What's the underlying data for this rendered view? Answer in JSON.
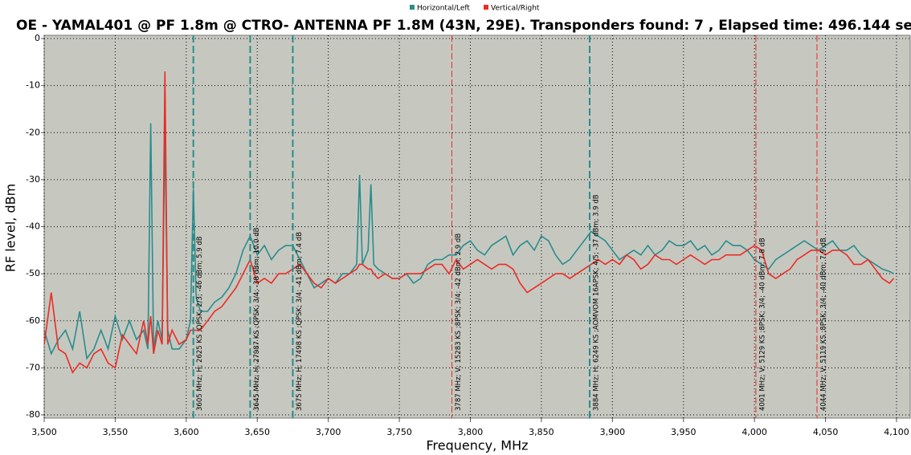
{
  "chart_data": {
    "type": "line",
    "title": "OE - YAMAL401 @ PF 1.8m @ CTRO- ANTENNA PF 1.8M (43N, 29E). Transponders found: 7 , Elapsed time: 496.144 se",
    "x_label": "Frequency, MHz",
    "y_label": "RF level, dBm",
    "xlim": [
      3500,
      4100
    ],
    "ylim": [
      -80,
      0
    ],
    "xticks": [
      {
        "value": 3500,
        "label": "3,500"
      },
      {
        "value": 3550,
        "label": "3,550"
      },
      {
        "value": 3600,
        "label": "3,600"
      },
      {
        "value": 3650,
        "label": "3,650"
      },
      {
        "value": 3700,
        "label": "3,700"
      },
      {
        "value": 3750,
        "label": "3,750"
      },
      {
        "value": 3800,
        "label": "3,800"
      },
      {
        "value": 3850,
        "label": "3,850"
      },
      {
        "value": 3900,
        "label": "3,900"
      },
      {
        "value": 3950,
        "label": "3,950"
      },
      {
        "value": 4000,
        "label": "4,000"
      },
      {
        "value": 4050,
        "label": "4,050"
      },
      {
        "value": 4100,
        "label": "4,100"
      }
    ],
    "yticks": [
      0,
      -10,
      -20,
      -30,
      -40,
      -50,
      -60,
      -70,
      -80
    ],
    "grid": true,
    "legend": "top",
    "x": [
      3500,
      3505,
      3510,
      3515,
      3520,
      3525,
      3530,
      3535,
      3540,
      3545,
      3550,
      3555,
      3560,
      3565,
      3570,
      3573,
      3575,
      3577,
      3580,
      3583,
      3585,
      3587,
      3590,
      3595,
      3600,
      3603,
      3605,
      3607,
      3610,
      3615,
      3620,
      3625,
      3630,
      3635,
      3640,
      3645,
      3650,
      3655,
      3660,
      3665,
      3670,
      3675,
      3680,
      3685,
      3690,
      3695,
      3700,
      3705,
      3710,
      3715,
      3720,
      3722,
      3724,
      3728,
      3730,
      3732,
      3735,
      3740,
      3745,
      3750,
      3755,
      3760,
      3765,
      3770,
      3775,
      3780,
      3785,
      3790,
      3795,
      3800,
      3805,
      3810,
      3815,
      3820,
      3825,
      3830,
      3835,
      3840,
      3845,
      3850,
      3855,
      3860,
      3865,
      3870,
      3875,
      3880,
      3885,
      3890,
      3895,
      3900,
      3905,
      3910,
      3915,
      3920,
      3925,
      3930,
      3935,
      3940,
      3945,
      3950,
      3955,
      3960,
      3965,
      3970,
      3975,
      3980,
      3985,
      3990,
      3995,
      4000,
      4005,
      4010,
      4015,
      4020,
      4025,
      4030,
      4035,
      4040,
      4045,
      4050,
      4055,
      4060,
      4065,
      4070,
      4075,
      4080,
      4085,
      4090,
      4095,
      4098
    ],
    "series": [
      {
        "name": "Horizontal/Left",
        "color": "#2a8c8c",
        "values": [
          -62,
          -67,
          -64,
          -62,
          -66,
          -58,
          -68,
          -66,
          -62,
          -66,
          -59,
          -64,
          -60,
          -64,
          -62,
          -66,
          -18,
          -66,
          -60,
          -64,
          -19,
          -62,
          -66,
          -66,
          -64,
          -60,
          -32,
          -55,
          -58,
          -58,
          -56,
          -55,
          -53,
          -50,
          -45,
          -42,
          -46,
          -44,
          -47,
          -45,
          -44,
          -44,
          -47,
          -50,
          -53,
          -52,
          -51,
          -52,
          -50,
          -50,
          -48,
          -29,
          -48,
          -45,
          -31,
          -48,
          -49,
          -50,
          -51,
          -51,
          -50,
          -52,
          -51,
          -48,
          -47,
          -47,
          -46,
          -46,
          -44,
          -43,
          -45,
          -46,
          -44,
          -43,
          -42,
          -46,
          -44,
          -43,
          -45,
          -42,
          -43,
          -46,
          -48,
          -47,
          -45,
          -43,
          -41,
          -42,
          -43,
          -45,
          -47,
          -46,
          -45,
          -46,
          -44,
          -46,
          -45,
          -43,
          -44,
          -44,
          -43,
          -45,
          -44,
          -46,
          -45,
          -43,
          -44,
          -44,
          -45,
          -47,
          -48,
          -49,
          -47,
          -46,
          -45,
          -44,
          -43,
          -44,
          -45,
          -44,
          -43,
          -45,
          -45,
          -44,
          -46,
          -47,
          -48,
          -49,
          -49.5,
          -50
        ]
      },
      {
        "name": "Vertical/Right",
        "color": "#ee2a24",
        "values": [
          -65,
          -54,
          -66,
          -67,
          -71,
          -69,
          -70,
          -67,
          -66,
          -69,
          -70,
          -63,
          -65,
          -67,
          -60,
          -65,
          -59,
          -67,
          -62,
          -65,
          -7,
          -65,
          -62,
          -65,
          -64,
          -62,
          -62,
          -62,
          -62,
          -60,
          -58,
          -57,
          -55,
          -53,
          -50,
          -47,
          -52,
          -51,
          -52,
          -50,
          -50,
          -49,
          -48,
          -50,
          -52,
          -53,
          -51,
          -52,
          -51,
          -50,
          -49,
          -48,
          -48,
          -49,
          -49,
          -50,
          -51,
          -50,
          -51,
          -51,
          -50,
          -50,
          -50,
          -49,
          -48,
          -48,
          -50,
          -47,
          -49,
          -48,
          -47,
          -48,
          -49,
          -48,
          -48,
          -49,
          -52,
          -54,
          -53,
          -52,
          -51,
          -50,
          -50,
          -51,
          -50,
          -49,
          -48,
          -47,
          -48,
          -47,
          -48,
          -46,
          -47,
          -49,
          -48,
          -46,
          -47,
          -47,
          -48,
          -47,
          -46,
          -47,
          -48,
          -47,
          -47,
          -46,
          -46,
          -46,
          -45,
          -44,
          -45,
          -50,
          -51,
          -50,
          -49,
          -47,
          -46,
          -45,
          -45,
          -46,
          -45,
          -45,
          -46,
          -48,
          -48,
          -47,
          -49,
          -51,
          -52,
          -51
        ]
      }
    ],
    "annotations": [
      {
        "x": 3605,
        "color": "#2a8c8c",
        "label": "3605 MHz; H; 2625 KS ;QPSK; 2/3; -46 dBm; 5.9 dB"
      },
      {
        "x": 3645,
        "color": "#2a8c8c",
        "label": "3645 MHz; H; 27987 KS ;QPSK; 3/4; -38 dBm; 10.0 dB"
      },
      {
        "x": 3675,
        "color": "#2a8c8c",
        "label": "3675 MHz; H; 17498 KS ;QPSK; 3/4; -41 dBm; 7.4 dB"
      },
      {
        "x": 3787,
        "color": "#ee2a24",
        "label": "3787 MHz; V; 15283 KS ;8PSK; 3/4; -42 dBm; 2.9 dB"
      },
      {
        "x": 3884,
        "color": "#2a8c8c",
        "label": "3884 MHz; H; 6249 KS ;AOMVOM 16APSK; 4/5; -37 dBm; 3.9 dB"
      },
      {
        "x": 4001,
        "color": "#ee2a24",
        "label": "4001 MHz; V; 5129 KS ;8PSK; 3/4; -40 dBm; 7.8 dB"
      },
      {
        "x": 4044,
        "color": "#ee2a24",
        "label": "4044 MHz; V; 5119 KS ;8PSK; 3/4; -40 dBm; 7.9 dB"
      }
    ]
  }
}
